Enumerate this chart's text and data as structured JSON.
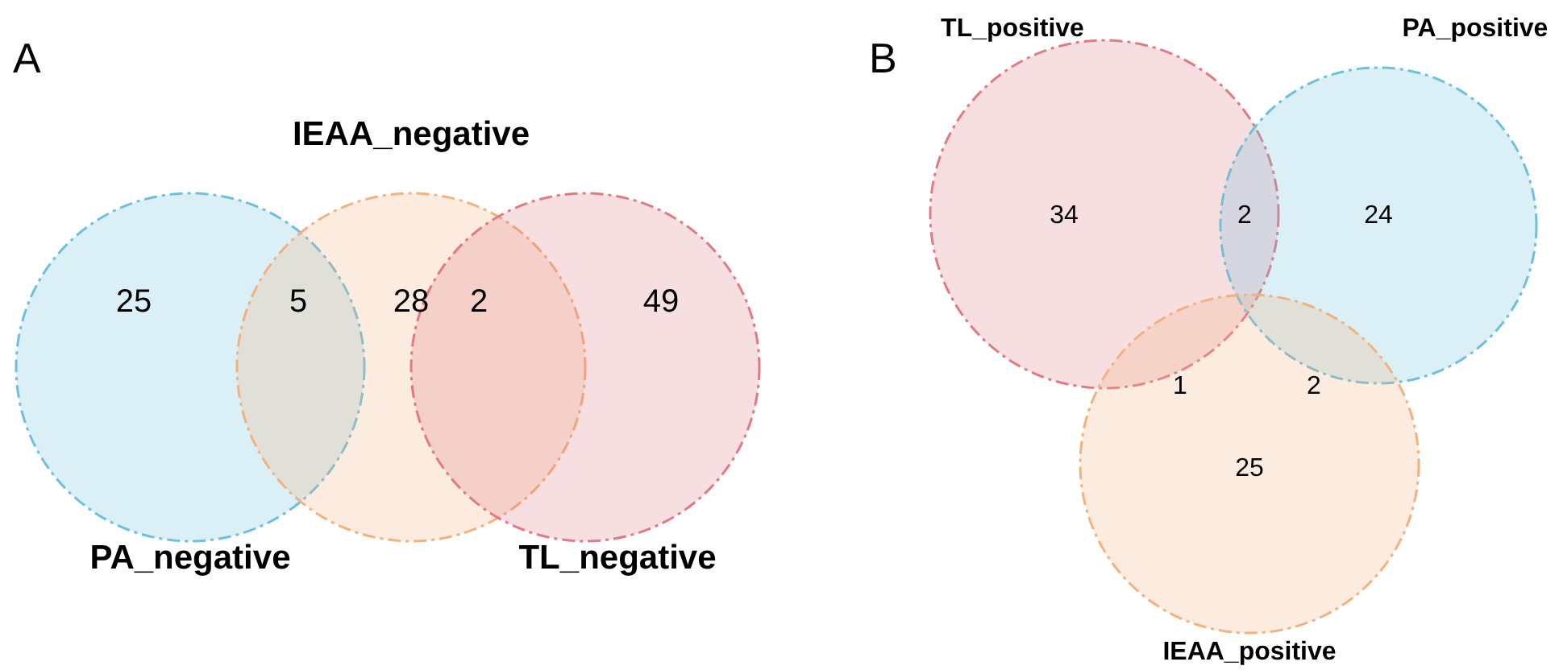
{
  "chart_data": [
    {
      "type": "other",
      "title": "A",
      "categories": [
        null,
        null,
        null,
        null,
        null
      ],
      "values": [
        25,
        5,
        28,
        2,
        49
      ],
      "data_labels": true,
      "annotations": [
        "PA_negative",
        "IEAA_negative",
        "TL_negative"
      ]
    },
    {
      "type": "other",
      "title": "B",
      "categories": [
        null,
        null,
        null,
        null,
        null,
        null
      ],
      "values": [
        34,
        2,
        24,
        1,
        2,
        25
      ],
      "data_labels": true,
      "annotations": [
        "TL_positive",
        "PA_positive",
        "IEAA_positive"
      ]
    }
  ]
}
